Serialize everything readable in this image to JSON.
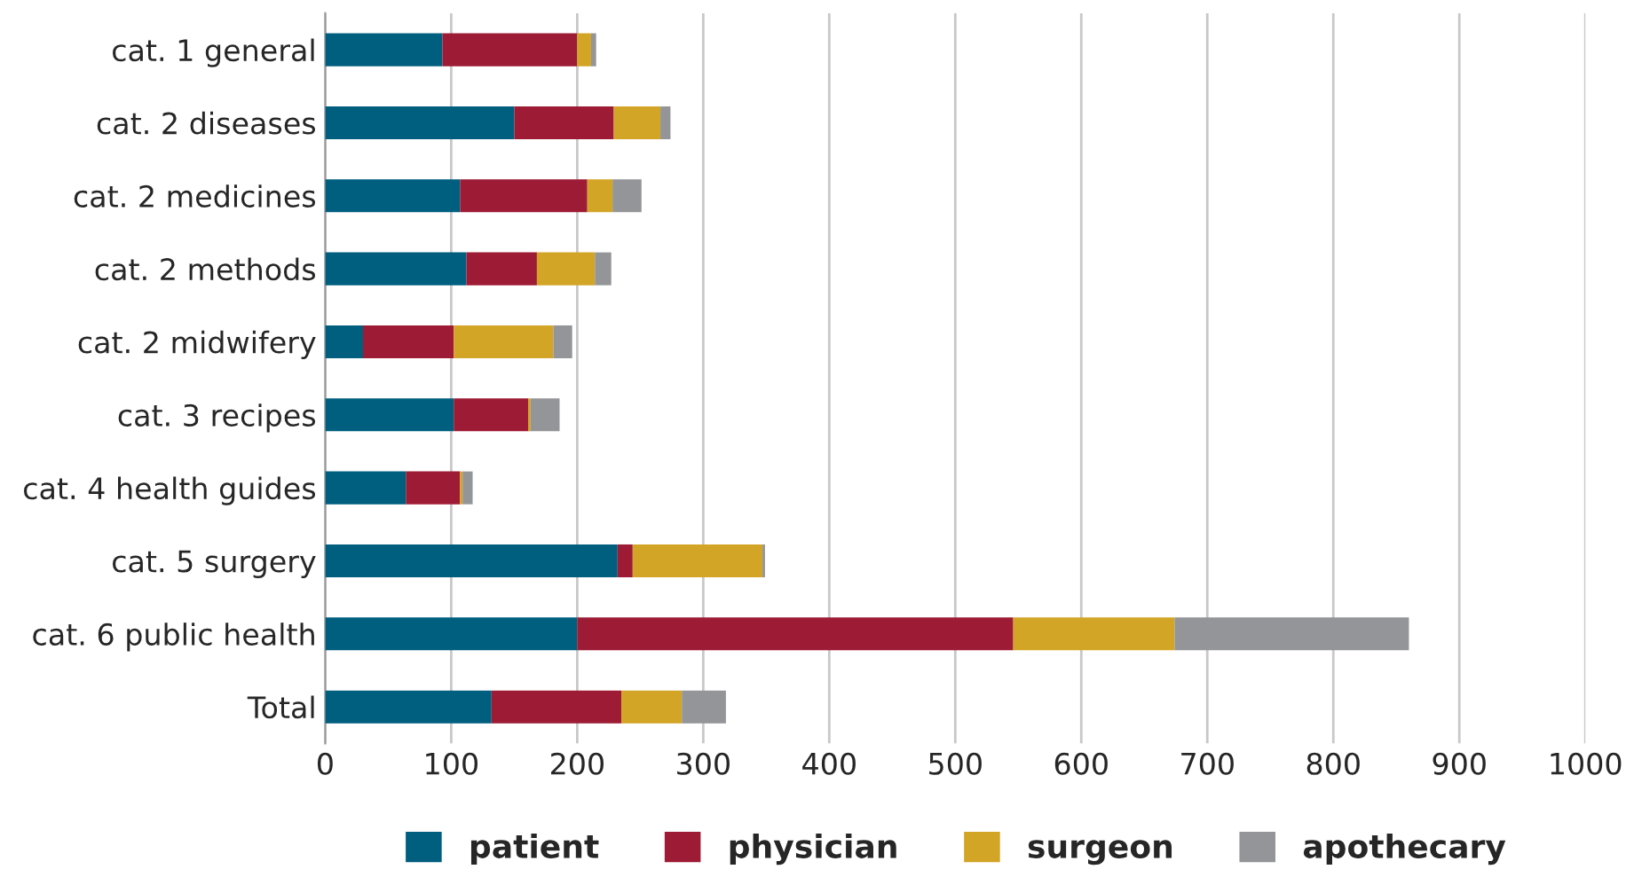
{
  "chart_data": {
    "type": "bar",
    "orientation": "horizontal",
    "stacked": true,
    "categories": [
      "cat. 1 general",
      "cat. 2 diseases",
      "cat. 2 medicines",
      "cat. 2 methods",
      "cat. 2 midwifery",
      "cat. 3 recipes",
      "cat. 4 health guides",
      "cat. 5 surgery",
      "cat. 6 public health",
      "Total"
    ],
    "series": [
      {
        "name": "patient",
        "color": "#005f7f",
        "values": [
          93,
          150,
          107,
          112,
          30,
          102,
          64,
          232,
          200,
          132
        ]
      },
      {
        "name": "physician",
        "color": "#9e1b36",
        "values": [
          107,
          79,
          101,
          56,
          72,
          59,
          43,
          12,
          346,
          103
        ]
      },
      {
        "name": "surgeon",
        "color": "#d3a526",
        "values": [
          11,
          37,
          20,
          46,
          79,
          2,
          2,
          103,
          128,
          48
        ]
      },
      {
        "name": "apothecary",
        "color": "#939598",
        "values": [
          4,
          8,
          23,
          13,
          15,
          23,
          8,
          2,
          186,
          35
        ]
      }
    ],
    "xlim": [
      0,
      1000
    ],
    "xticks": [
      0,
      100,
      200,
      300,
      400,
      500,
      600,
      700,
      800,
      900,
      1000
    ],
    "grid": "x",
    "legend": "bottom"
  }
}
